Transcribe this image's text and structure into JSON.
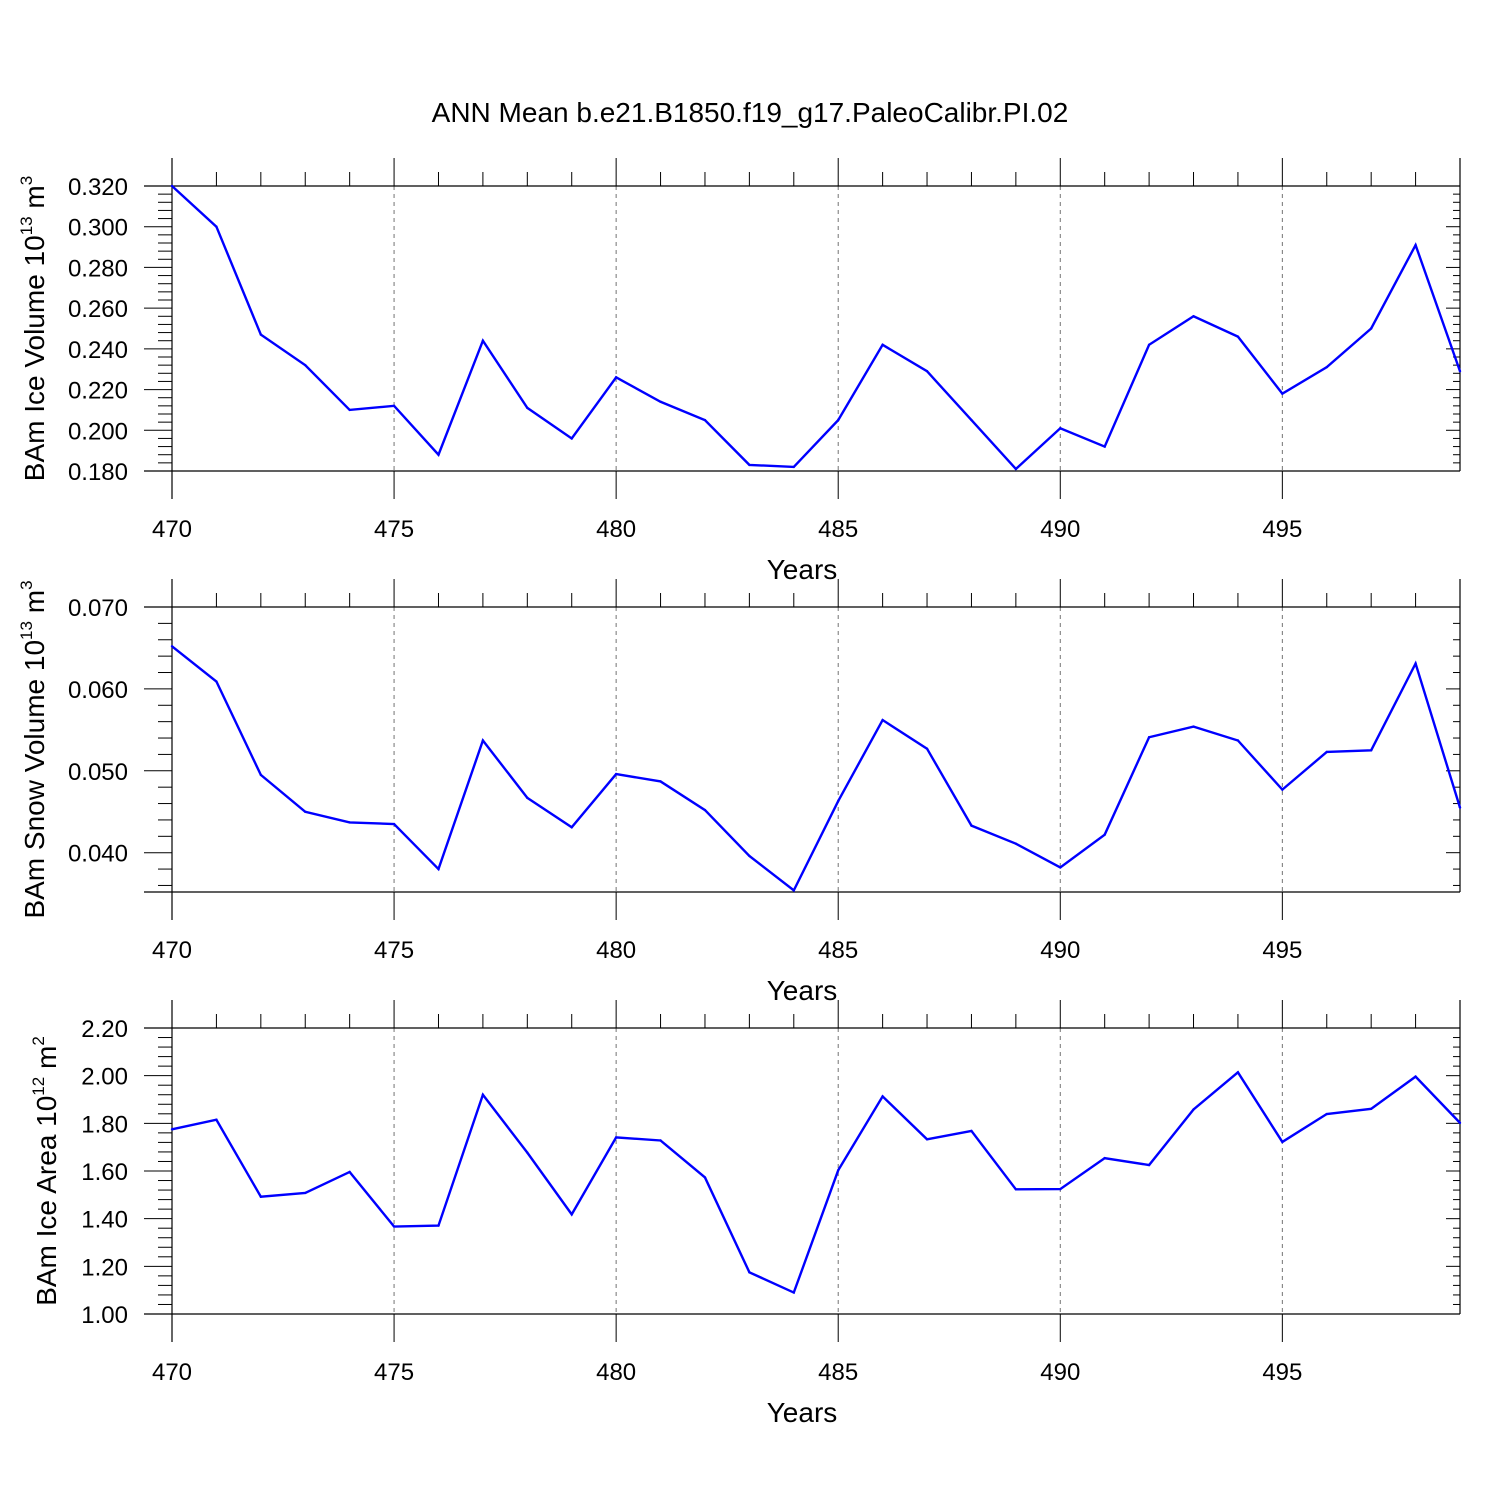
{
  "title": "ANN Mean b.e21.B1850.f19_g17.PaleoCalibr.PI.02",
  "line_color": "#0000ff",
  "chart_data": [
    {
      "type": "line",
      "ylabel": {
        "text": "BAm Ice Volume 10",
        "exp": "13",
        "unit": " m",
        "unit_exp": "3"
      },
      "xlabel": "Years",
      "xlim": [
        470,
        499
      ],
      "ylim": [
        0.18,
        0.32
      ],
      "x_ticks": [
        "470",
        "475",
        "480",
        "485",
        "490",
        "495"
      ],
      "y_ticks": [
        "0.180",
        "0.200",
        "0.220",
        "0.240",
        "0.260",
        "0.280",
        "0.300",
        "0.320"
      ],
      "grid": "vertical dashed at major x ticks",
      "series": [
        {
          "x": [
            470,
            471,
            472,
            473,
            474,
            475,
            476,
            477,
            478,
            479,
            480,
            481,
            482,
            483,
            484,
            485,
            486,
            487,
            488,
            489,
            490,
            491,
            492,
            493,
            494,
            495,
            496,
            497,
            498,
            499
          ],
          "values": [
            0.32,
            0.3,
            0.247,
            0.232,
            0.21,
            0.212,
            0.188,
            0.244,
            0.211,
            0.196,
            0.226,
            0.214,
            0.205,
            0.183,
            0.182,
            0.205,
            0.242,
            0.229,
            0.205,
            0.181,
            0.201,
            0.192,
            0.242,
            0.256,
            0.246,
            0.218,
            0.231,
            0.25,
            0.291,
            0.229
          ]
        }
      ]
    },
    {
      "type": "line",
      "ylabel": {
        "text": "BAm Snow Volume 10",
        "exp": "13",
        "unit": " m",
        "unit_exp": "3"
      },
      "xlabel": "Years",
      "xlim": [
        470,
        499
      ],
      "ylim": [
        0.0352,
        0.07
      ],
      "x_ticks": [
        "470",
        "475",
        "480",
        "485",
        "490",
        "495"
      ],
      "y_ticks": [
        "0.040",
        "0.050",
        "0.060",
        "0.070"
      ],
      "grid": "vertical dashed at major x ticks",
      "series": [
        {
          "x": [
            470,
            471,
            472,
            473,
            474,
            475,
            476,
            477,
            478,
            479,
            480,
            481,
            482,
            483,
            484,
            485,
            486,
            487,
            488,
            489,
            490,
            491,
            492,
            493,
            494,
            495,
            496,
            497,
            498,
            499
          ],
          "values": [
            0.0652,
            0.0609,
            0.0495,
            0.045,
            0.0437,
            0.0435,
            0.038,
            0.0537,
            0.0467,
            0.0431,
            0.0496,
            0.0487,
            0.0452,
            0.0396,
            0.0354,
            0.0463,
            0.0562,
            0.0527,
            0.0433,
            0.0411,
            0.0382,
            0.0422,
            0.0541,
            0.0554,
            0.0537,
            0.0477,
            0.0523,
            0.0525,
            0.0631,
            0.0455
          ]
        }
      ]
    },
    {
      "type": "line",
      "ylabel": {
        "text": "BAm Ice Area 10",
        "exp": "12",
        "unit": " m",
        "unit_exp": "2"
      },
      "xlabel": "Years",
      "xlim": [
        470,
        499
      ],
      "ylim": [
        1.0,
        2.2
      ],
      "x_ticks": [
        "470",
        "475",
        "480",
        "485",
        "490",
        "495"
      ],
      "y_ticks": [
        "1.00",
        "1.20",
        "1.40",
        "1.60",
        "1.80",
        "2.00",
        "2.20"
      ],
      "grid": "vertical dashed at major x ticks",
      "series": [
        {
          "x": [
            470,
            471,
            472,
            473,
            474,
            475,
            476,
            477,
            478,
            479,
            480,
            481,
            482,
            483,
            484,
            485,
            486,
            487,
            488,
            489,
            490,
            491,
            492,
            493,
            494,
            495,
            496,
            497,
            498,
            499
          ],
          "values": [
            1.775,
            1.815,
            1.492,
            1.508,
            1.596,
            1.367,
            1.371,
            1.92,
            1.677,
            1.418,
            1.741,
            1.728,
            1.573,
            1.175,
            1.09,
            1.603,
            1.913,
            1.733,
            1.768,
            1.523,
            1.524,
            1.654,
            1.625,
            1.858,
            2.014,
            1.722,
            1.839,
            1.861,
            1.996,
            1.802
          ]
        }
      ]
    }
  ]
}
